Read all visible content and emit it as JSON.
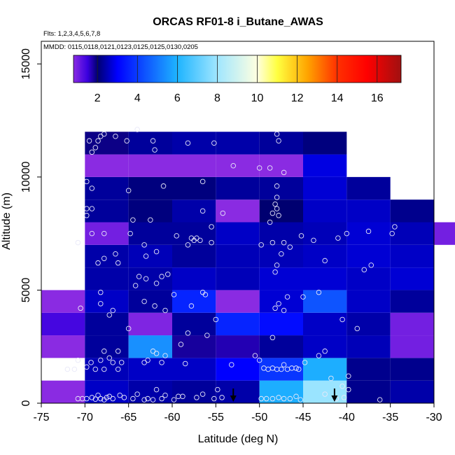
{
  "chart_data": {
    "type": "heatmap",
    "title": "ORCAS RF01-8 i_Butane_AWAS",
    "flights_note": "Flts: 1,2,3,4,5,6,7,8",
    "dates_note": "MMDD: 0115,0118,0121,0123,0125,0125,0130,0205",
    "xlabel": "Latitude (deg N)",
    "ylabel": "Altitude (m)",
    "xlim": [
      -75,
      -30
    ],
    "ylim": [
      0,
      16000
    ],
    "x_ticks": [
      -75,
      -70,
      -65,
      -60,
      -55,
      -50,
      -45,
      -40,
      -35,
      -30
    ],
    "y_ticks": [
      0,
      5000,
      10000,
      15000
    ],
    "colorbar": {
      "range": [
        0.8,
        17.2
      ],
      "ticks": [
        2,
        4,
        6,
        8,
        10,
        12,
        14,
        16
      ],
      "gradient": [
        [
          0.8,
          "#8a2be2"
        ],
        [
          1.5,
          "#3a00e0"
        ],
        [
          2.0,
          "#000070"
        ],
        [
          3.0,
          "#0000ff"
        ],
        [
          6.0,
          "#1eb4ff"
        ],
        [
          8.0,
          "#a0e6ff"
        ],
        [
          10.0,
          "#ffffe0"
        ],
        [
          11.0,
          "#ffff40"
        ],
        [
          12.5,
          "#ffa500"
        ],
        [
          14.0,
          "#ff3000"
        ],
        [
          15.5,
          "#ff0000"
        ],
        [
          17.2,
          "#a01010"
        ]
      ]
    },
    "bin_width_lat": 5,
    "bin_height_alt": 1000,
    "cells": [
      [
        -75,
        0,
        0.6
      ],
      [
        -75,
        2000,
        0.6
      ],
      [
        -75,
        3000,
        1.4
      ],
      [
        -75,
        4000,
        0.6
      ],
      [
        -70,
        0,
        2.6
      ],
      [
        -70,
        1000,
        2.5
      ],
      [
        -70,
        2000,
        2.3
      ],
      [
        -70,
        3000,
        2.3
      ],
      [
        -70,
        4000,
        2.6
      ],
      [
        -70,
        5000,
        2.4
      ],
      [
        -70,
        6000,
        2.4
      ],
      [
        -70,
        7000,
        1.0
      ],
      [
        -70,
        8000,
        2.3
      ],
      [
        -70,
        9000,
        2.3
      ],
      [
        -70,
        10000,
        0.8
      ],
      [
        -70,
        11000,
        1.9
      ],
      [
        -65,
        0,
        2.4
      ],
      [
        -65,
        1000,
        2.6
      ],
      [
        -65,
        2000,
        5.4
      ],
      [
        -65,
        3000,
        0.9
      ],
      [
        -65,
        4000,
        2.3
      ],
      [
        -65,
        5000,
        2.4
      ],
      [
        -65,
        6000,
        2.5
      ],
      [
        -65,
        7000,
        2.3
      ],
      [
        -65,
        8000,
        2.1
      ],
      [
        -65,
        9000,
        2.1
      ],
      [
        -65,
        10000,
        0.8
      ],
      [
        -65,
        11000,
        2.3
      ],
      [
        -60,
        0,
        2.3
      ],
      [
        -60,
        1000,
        2.6
      ],
      [
        -60,
        2000,
        1.8
      ],
      [
        -60,
        3000,
        2.3
      ],
      [
        -60,
        4000,
        3.6
      ],
      [
        -60,
        5000,
        2.6
      ],
      [
        -60,
        6000,
        2.3
      ],
      [
        -60,
        7000,
        2.3
      ],
      [
        -60,
        8000,
        2.4
      ],
      [
        -60,
        9000,
        2.1
      ],
      [
        -60,
        10000,
        0.8
      ],
      [
        -60,
        11000,
        2.4
      ],
      [
        -55,
        0,
        2.4
      ],
      [
        -55,
        1000,
        3.0
      ],
      [
        -55,
        2000,
        1.7
      ],
      [
        -55,
        3000,
        3.6
      ],
      [
        -55,
        4000,
        0.8
      ],
      [
        -55,
        5000,
        2.5
      ],
      [
        -55,
        6000,
        2.5
      ],
      [
        -55,
        7000,
        2.6
      ],
      [
        -55,
        8000,
        0.8
      ],
      [
        -55,
        9000,
        2.3
      ],
      [
        -55,
        10000,
        0.8
      ],
      [
        -55,
        11000,
        2.4
      ],
      [
        -50,
        0,
        5.9
      ],
      [
        -50,
        1000,
        3.9
      ],
      [
        -50,
        2000,
        2.3
      ],
      [
        -50,
        3000,
        3.2
      ],
      [
        -50,
        4000,
        2.7
      ],
      [
        -50,
        5000,
        2.7
      ],
      [
        -50,
        6000,
        2.5
      ],
      [
        -50,
        7000,
        2.4
      ],
      [
        -50,
        8000,
        2.0
      ],
      [
        -50,
        9000,
        2.3
      ],
      [
        -50,
        10000,
        0.8
      ],
      [
        -50,
        11000,
        2.3
      ],
      [
        -45,
        0,
        7.9
      ],
      [
        -45,
        1000,
        5.9
      ],
      [
        -45,
        2000,
        2.6
      ],
      [
        -45,
        3000,
        2.6
      ],
      [
        -45,
        4000,
        4.4
      ],
      [
        -45,
        5000,
        2.7
      ],
      [
        -45,
        6000,
        2.6
      ],
      [
        -45,
        7000,
        2.5
      ],
      [
        -45,
        8000,
        2.6
      ],
      [
        -45,
        9000,
        2.7
      ],
      [
        -45,
        10000,
        2.8
      ],
      [
        -45,
        11000,
        2.1
      ],
      [
        -40,
        0,
        2.2
      ],
      [
        -40,
        1000,
        2.2
      ],
      [
        -40,
        2000,
        2.5
      ],
      [
        -40,
        3000,
        2.4
      ],
      [
        -40,
        4000,
        2.6
      ],
      [
        -40,
        5000,
        2.6
      ],
      [
        -40,
        6000,
        2.7
      ],
      [
        -40,
        7000,
        2.7
      ],
      [
        -40,
        8000,
        2.6
      ],
      [
        -40,
        9000,
        2.3
      ],
      [
        -35,
        0,
        2.4
      ],
      [
        -35,
        1000,
        2.2
      ],
      [
        -35,
        2000,
        1.0
      ],
      [
        -35,
        3000,
        1.0
      ],
      [
        -35,
        4000,
        2.3
      ],
      [
        -35,
        5000,
        2.7
      ],
      [
        -35,
        6000,
        2.6
      ],
      [
        -35,
        7000,
        2.5
      ],
      [
        -35,
        8000,
        2.2
      ],
      [
        -30,
        7000,
        1.0
      ]
    ],
    "points": [
      [
        -70.8,
        200
      ],
      [
        -70.3,
        200
      ],
      [
        -69.8,
        200
      ],
      [
        -69.2,
        250
      ],
      [
        -68.8,
        180
      ],
      [
        -68.5,
        350
      ],
      [
        -68.2,
        200
      ],
      [
        -67.8,
        150
      ],
      [
        -67.5,
        250
      ],
      [
        -67.2,
        300
      ],
      [
        -66.8,
        200
      ],
      [
        -66.0,
        350
      ],
      [
        -65.5,
        250
      ],
      [
        -64.5,
        200
      ],
      [
        -64.0,
        400
      ],
      [
        -63.2,
        150
      ],
      [
        -62.8,
        200
      ],
      [
        -62.2,
        150
      ],
      [
        -61.8,
        600
      ],
      [
        -61.2,
        200
      ],
      [
        -60.8,
        350
      ],
      [
        -59.8,
        150
      ],
      [
        -59.3,
        300
      ],
      [
        -58.8,
        300
      ],
      [
        -57.2,
        250
      ],
      [
        -56.5,
        400
      ],
      [
        -55.2,
        200
      ],
      [
        -54.8,
        600
      ],
      [
        -54.3,
        250
      ],
      [
        -49.8,
        200
      ],
      [
        -49.2,
        200
      ],
      [
        -48.5,
        200
      ],
      [
        -47.8,
        250
      ],
      [
        -47.2,
        200
      ],
      [
        -46.5,
        200
      ],
      [
        -45.8,
        300
      ],
      [
        -45.3,
        150
      ],
      [
        -42.5,
        400
      ],
      [
        -41.2,
        200
      ],
      [
        -40.3,
        250
      ],
      [
        -39.8,
        600
      ],
      [
        -36.2,
        150
      ],
      [
        -72.0,
        1500
      ],
      [
        -71.2,
        1500
      ],
      [
        -70.8,
        1900
      ],
      [
        -69.8,
        1600
      ],
      [
        -69.3,
        1800
      ],
      [
        -68.8,
        1500
      ],
      [
        -68.2,
        1900
      ],
      [
        -67.8,
        1500
      ],
      [
        -67.2,
        2000
      ],
      [
        -66.8,
        1800
      ],
      [
        -66.2,
        1500
      ],
      [
        -65.8,
        1800
      ],
      [
        -63.2,
        1800
      ],
      [
        -62.8,
        1900
      ],
      [
        -61.8,
        2200
      ],
      [
        -61.2,
        1800
      ],
      [
        -60.8,
        2100
      ],
      [
        -58.5,
        1750
      ],
      [
        -53.2,
        1700
      ],
      [
        -50.5,
        2100
      ],
      [
        -50.0,
        1900
      ],
      [
        -49.5,
        1550
      ],
      [
        -49.0,
        1500
      ],
      [
        -48.5,
        1550
      ],
      [
        -48.0,
        1500
      ],
      [
        -47.5,
        1500
      ],
      [
        -47.2,
        1700
      ],
      [
        -46.8,
        1500
      ],
      [
        -46.3,
        1550
      ],
      [
        -45.8,
        1550
      ],
      [
        -45.5,
        1500
      ],
      [
        -44.8,
        1800
      ],
      [
        -43.2,
        2100
      ],
      [
        -42.5,
        2300
      ],
      [
        -41.8,
        1100
      ],
      [
        -40.5,
        750
      ],
      [
        -39.8,
        1200
      ],
      [
        -67.8,
        2300
      ],
      [
        -66.2,
        2300
      ],
      [
        -62.2,
        2300
      ],
      [
        -59.0,
        2600
      ],
      [
        -58.2,
        3100
      ],
      [
        -56.0,
        3000
      ],
      [
        -48.5,
        2900
      ],
      [
        -38.8,
        3300
      ],
      [
        -40.5,
        3700
      ],
      [
        -70.5,
        4200
      ],
      [
        -68.2,
        4400
      ],
      [
        -67.2,
        3900
      ],
      [
        -66.8,
        4100
      ],
      [
        -65.0,
        3300
      ],
      [
        -63.2,
        4500
      ],
      [
        -62.0,
        4300
      ],
      [
        -60.8,
        4100
      ],
      [
        -59.8,
        4800
      ],
      [
        -57.8,
        4300
      ],
      [
        -56.5,
        4900
      ],
      [
        -56.2,
        4800
      ],
      [
        -55.0,
        3700
      ],
      [
        -48.2,
        4200
      ],
      [
        -47.8,
        4400
      ],
      [
        -47.2,
        4100
      ],
      [
        -46.8,
        4700
      ],
      [
        -45.0,
        4700
      ],
      [
        -43.2,
        4900
      ],
      [
        -68.2,
        4900
      ],
      [
        -64.2,
        5200
      ],
      [
        -63.8,
        5600
      ],
      [
        -63.0,
        5500
      ],
      [
        -61.8,
        5300
      ],
      [
        -61.2,
        5600
      ],
      [
        -60.5,
        5700
      ],
      [
        -48.2,
        5800
      ],
      [
        -48.0,
        6100
      ],
      [
        -47.5,
        6600
      ],
      [
        -42.5,
        6300
      ],
      [
        -38.0,
        5900
      ],
      [
        -37.2,
        6100
      ],
      [
        -68.5,
        6200
      ],
      [
        -67.8,
        6400
      ],
      [
        -66.5,
        6600
      ],
      [
        -66.2,
        6200
      ],
      [
        -63.0,
        6500
      ],
      [
        -61.8,
        6700
      ],
      [
        -58.2,
        7000
      ],
      [
        -57.8,
        7300
      ],
      [
        -57.5,
        7200
      ],
      [
        -57.2,
        7300
      ],
      [
        -56.8,
        7200
      ],
      [
        -55.5,
        7100
      ],
      [
        -49.8,
        7000
      ],
      [
        -48.5,
        7100
      ],
      [
        -47.2,
        7100
      ],
      [
        -46.5,
        6900
      ],
      [
        -45.2,
        7400
      ],
      [
        -43.8,
        7200
      ],
      [
        -41.0,
        7300
      ],
      [
        -40.0,
        7500
      ],
      [
        -37.5,
        7600
      ],
      [
        -34.5,
        7800
      ],
      [
        -34.8,
        7500
      ],
      [
        -70.8,
        7100
      ],
      [
        -69.2,
        7500
      ],
      [
        -67.8,
        7500
      ],
      [
        -64.8,
        7500
      ],
      [
        -63.2,
        7000
      ],
      [
        -59.5,
        7400
      ],
      [
        -55.5,
        7800
      ],
      [
        -54.2,
        8400
      ],
      [
        -48.5,
        8400
      ],
      [
        -48.8,
        8000
      ],
      [
        -48.0,
        8600
      ],
      [
        -47.8,
        8300
      ],
      [
        -69.8,
        8300
      ],
      [
        -69.2,
        8600
      ],
      [
        -69.8,
        8600
      ],
      [
        -64.5,
        8100
      ],
      [
        -62.5,
        8100
      ],
      [
        -56.5,
        8500
      ],
      [
        -48.0,
        9100
      ],
      [
        -48.2,
        8800
      ],
      [
        -69.8,
        9800
      ],
      [
        -69.2,
        9500
      ],
      [
        -65.0,
        9400
      ],
      [
        -61.0,
        9600
      ],
      [
        -56.5,
        9800
      ],
      [
        -48.0,
        9600
      ],
      [
        -48.8,
        10400
      ],
      [
        -50.0,
        10400
      ],
      [
        -47.2,
        10200
      ],
      [
        -53.0,
        10500
      ],
      [
        -69.2,
        11100
      ],
      [
        -69.5,
        11600
      ],
      [
        -68.5,
        11600
      ],
      [
        -68.2,
        11800
      ],
      [
        -68.8,
        11300
      ],
      [
        -67.8,
        11900
      ],
      [
        -66.5,
        11800
      ],
      [
        -65.2,
        11600
      ],
      [
        -64.0,
        12100
      ],
      [
        -62.2,
        11600
      ],
      [
        -62.0,
        11200
      ],
      [
        -58.2,
        11500
      ],
      [
        -55.2,
        11500
      ],
      [
        -48.0,
        11900
      ],
      [
        -47.8,
        11600
      ]
    ],
    "arrows_lat": [
      -53.0,
      -41.4
    ]
  }
}
